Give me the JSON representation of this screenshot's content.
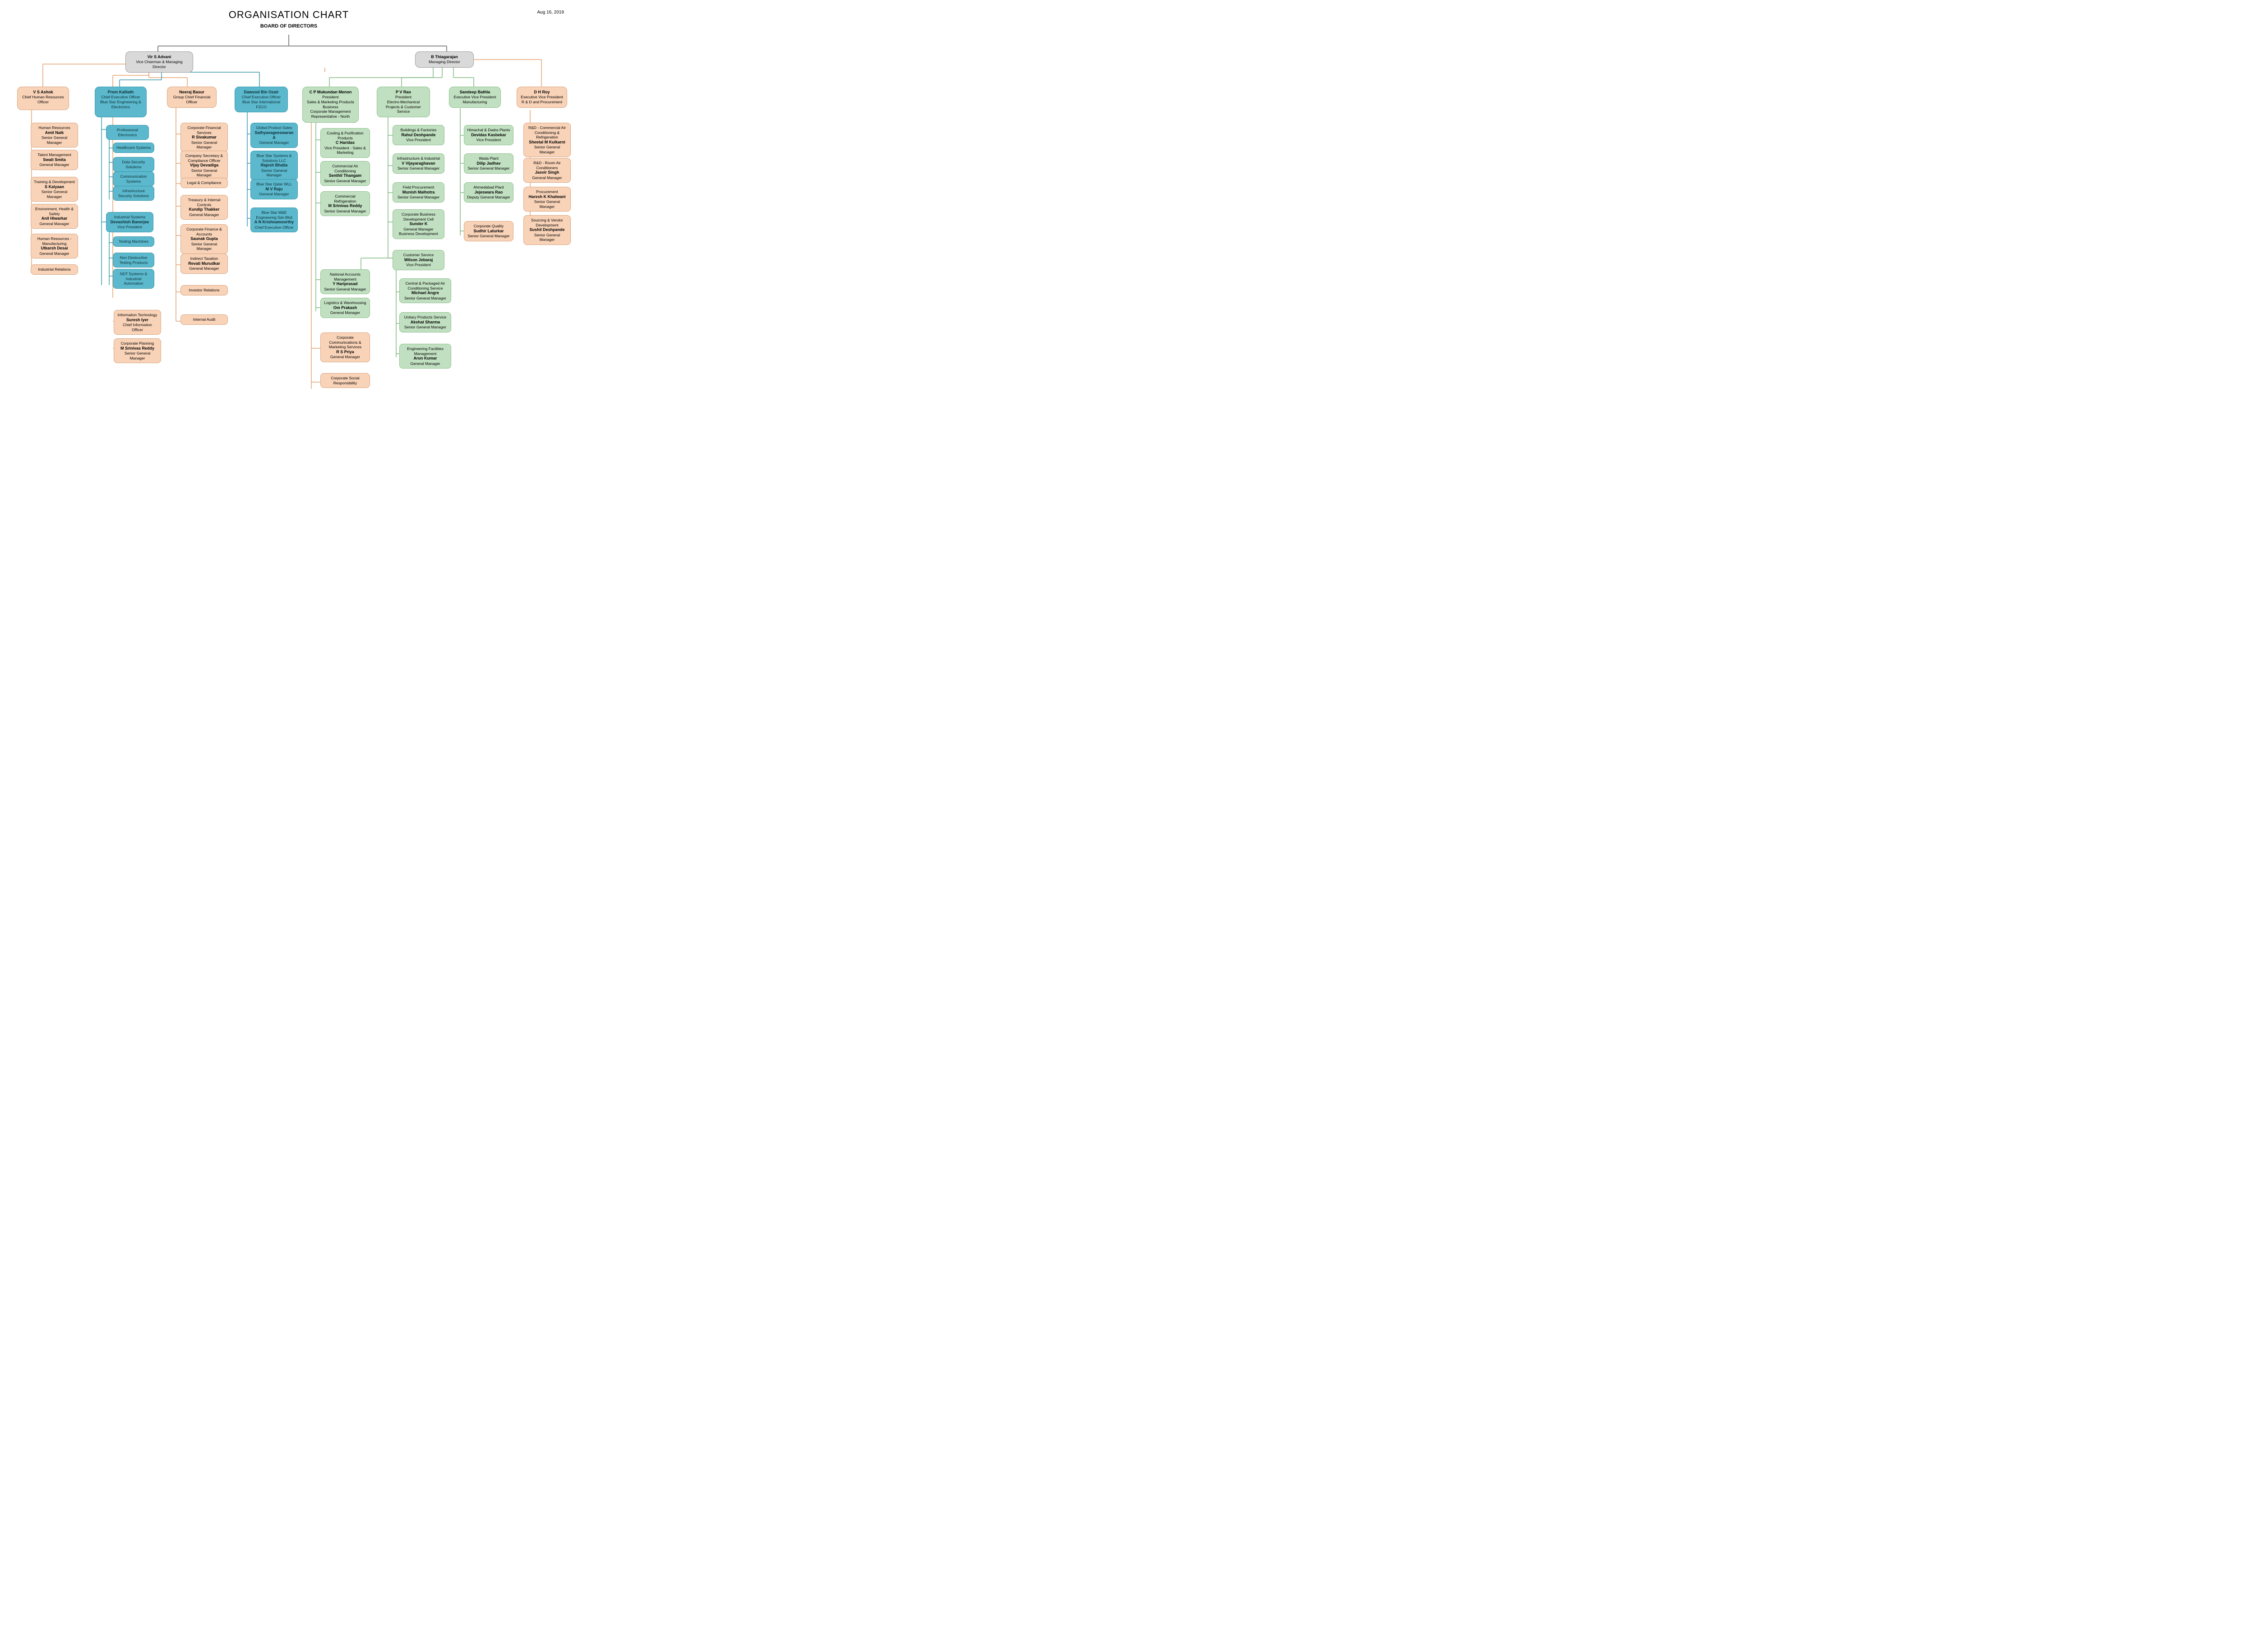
{
  "title": "ORGANISATION CHART",
  "date": "Aug 16, 2019",
  "subtitle": "BOARD OF DIRECTORS",
  "colors": {
    "gray": "#d9d9d9",
    "peach": "#f9d3b8",
    "blue": "#5cb8cc",
    "green": "#c1e0c1",
    "bg": "#ffffff"
  },
  "top": {
    "left": {
      "name": "Vir S Advani",
      "role": "Vice Chairman & Managing Director"
    },
    "right": {
      "name": "B Thiagarajan",
      "role": "Managing Director"
    }
  },
  "cols": {
    "ashok": {
      "name": "V S Ashok",
      "role": "Chief Human Resources Officer",
      "items": [
        {
          "dept": "Human Resources",
          "name": "Amit Naik",
          "role": "Senior General Manager"
        },
        {
          "dept": "Talent Management",
          "name": "Swati Smita",
          "role": "General Manager"
        },
        {
          "dept": "Training & Development",
          "name": "S Kalyaan",
          "role": "Senior General Manager"
        },
        {
          "dept": "Environment, Health & Safety",
          "name": "Anil Hiwarkar",
          "role": "General Manager"
        },
        {
          "dept": "Human Resources - Manufacturing",
          "name": "Utkarsh Desai",
          "role": "General Manager"
        },
        {
          "dept": "Industrial Relations",
          "name": "",
          "role": ""
        }
      ]
    },
    "prem": {
      "name": "Prem Kalliath",
      "role1": "Chief Executive Officer",
      "role2": "Blue Star Engineering & Electronics",
      "pe_label": "Professional Electronics",
      "pe_items": [
        "Healthcare Systems",
        "Data Security Solutions",
        "Communication Systems",
        "Infrastructure Security Solutions"
      ],
      "is": {
        "dept": "Industrial Systems",
        "name": "Devashish Banerjee",
        "role": "Vice President"
      },
      "is_items": [
        "Testing Machines",
        "Non Destructive Testing Products",
        "NDT Systems & Industrial Automation"
      ],
      "it": {
        "dept": "Information Technology",
        "name": "Suresh Iyer",
        "role": "Chief Information Officer"
      },
      "cp": {
        "dept": "Corporate Planning",
        "name": "M Srinivas Reddy",
        "role": "Senior General Manager"
      }
    },
    "neeraj": {
      "name": "Neeraj Basur",
      "role": "Group Chief Financial Officer",
      "items": [
        {
          "dept": "Corporate Financial Services",
          "name": "R Sivakumar",
          "role": "Senior General Manager"
        },
        {
          "dept": "Company Secretary & Compliance Officer",
          "name": "Vijay Devadiga",
          "role": "Senior General Manager"
        },
        {
          "dept": "Legal & Compliance",
          "name": "",
          "role": ""
        },
        {
          "dept": "Treasury & Internal Controls",
          "name": "Kundip Thakker",
          "role": "General Manager"
        },
        {
          "dept": "Corporate Finance & Accounts",
          "name": "Saunak Gupta",
          "role": "Senior General Manager"
        },
        {
          "dept": "Indirect Taxation",
          "name": "Revati Murudkar",
          "role": "General Manager"
        },
        {
          "dept": "Investor Relations",
          "name": "",
          "role": ""
        },
        {
          "dept": "Internal Audit",
          "name": "",
          "role": ""
        }
      ]
    },
    "dawood": {
      "name": "Dawood Bin Ozair",
      "role1": "Chief Executive Officer",
      "role2": "Blue Star International FZCO",
      "items": [
        {
          "dept": "Global Product Sales",
          "name": "Sathyavageeswaran A",
          "role": "General Manager"
        },
        {
          "dept": "Blue Star Systems & Solutions LLC",
          "name": "Rajesh Bhatia",
          "role": "Senior General Manager"
        },
        {
          "dept": "Blue Star Qatar WLL",
          "name": "M V Raju",
          "role": "General Manager"
        },
        {
          "dept": "Blue Star M&E Engineering Sdn Bhd",
          "name": "A N Krishnamoorthy",
          "role": "Chief Executive Officer"
        }
      ]
    },
    "menon": {
      "name": "C P Mukundan Menon",
      "role1": "President",
      "role2": "Sales & Marketing Products Business",
      "role3": "Corporate Management Representative - North",
      "items": [
        {
          "dept": "Cooling & Purification Products",
          "name": "C Haridas",
          "role": "Vice President - Sales & Marketing"
        },
        {
          "dept": "Commercial Air Conditioning",
          "name": "Senthil Thangam",
          "role": "Senior General Manager"
        },
        {
          "dept": "Commercial Refrigeration",
          "name": "M Srinivas Reddy",
          "role": "Senior General Manager"
        }
      ],
      "nam": {
        "dept": "National Accounts Management",
        "name": "Y Hariprasad",
        "role": "Senior General Manager"
      },
      "log": {
        "dept": "Logistics & Warehousing",
        "name": "Om Prakash",
        "role": "General Manager"
      },
      "ccms": {
        "dept": "Corporate Communications & Marketing Services",
        "name": "R S Priya",
        "role": "General Manager"
      },
      "csr": {
        "dept": "Corporate Social Responsibility",
        "name": "",
        "role": ""
      }
    },
    "rao": {
      "name": "P V Rao",
      "role1": "President",
      "role2": "Electro-Mechanical Projects & Customer Service",
      "items": [
        {
          "dept": "Buildings & Factories",
          "name": "Rahul Deshpande",
          "role": "Vice President"
        },
        {
          "dept": "Infrastructure & Industrial",
          "name": "V Vijayaraghavan",
          "role": "Senior General Manager"
        },
        {
          "dept": "Field Procurement",
          "name": "Munish Malhotra",
          "role": "Senior General Manager"
        },
        {
          "dept": "Corporate Business Development Cell",
          "name": "Sunder K",
          "role": "General Manager Business Development"
        }
      ],
      "cs": {
        "dept": "Customer Service",
        "name": "Wilson Jebaraj",
        "role": "Vice President"
      },
      "cs_items": [
        {
          "dept": "Central & Packaged Air Conditioning Service",
          "name": "Michael Angre",
          "role": "Senior General Manager"
        },
        {
          "dept": "Unitary Products Service",
          "name": "Akshat Sharma",
          "role": "Senior General Manager"
        },
        {
          "dept": "Engineering Facilities Management",
          "name": "Arun Kumar",
          "role": "General Manager"
        }
      ]
    },
    "bathla": {
      "name": "Sandeep Bathla",
      "role1": "Executive Vice President",
      "role2": "Manufacturing",
      "items": [
        {
          "dept": "Himachal & Dadra Plants",
          "name": "Devidas Kasbekar",
          "role": "Vice President"
        },
        {
          "dept": "Wada Plant",
          "name": "Dilip Jadhav",
          "role": "Senior General Manager"
        },
        {
          "dept": "Ahmedabad Plant",
          "name": "Jejeswara Rao",
          "role": "Deputy General Manager"
        },
        {
          "dept": "Corporate Quality",
          "name": "Sudhir Laturkar",
          "role": "Senior General Manager",
          "color": "peach"
        }
      ]
    },
    "roy": {
      "name": "D H Roy",
      "role1": "Executive Vice President",
      "role2": "R & D and Procurement",
      "items": [
        {
          "dept": "R&D - Commercial Air Conditioning & Refrigeration",
          "name": "Sheetal M Kulkarni",
          "role": "Senior General Manager"
        },
        {
          "dept": "R&D - Room Air Conditioners",
          "name": "Jasvir Singh",
          "role": "General Manager"
        },
        {
          "dept": "Procurement",
          "name": "Haresh K Khatwani",
          "role": "Senior General Manager"
        },
        {
          "dept": "Sourcing & Vendor Development",
          "name": "Sushil Deshpande",
          "role": "Senior General Manager"
        }
      ]
    }
  }
}
